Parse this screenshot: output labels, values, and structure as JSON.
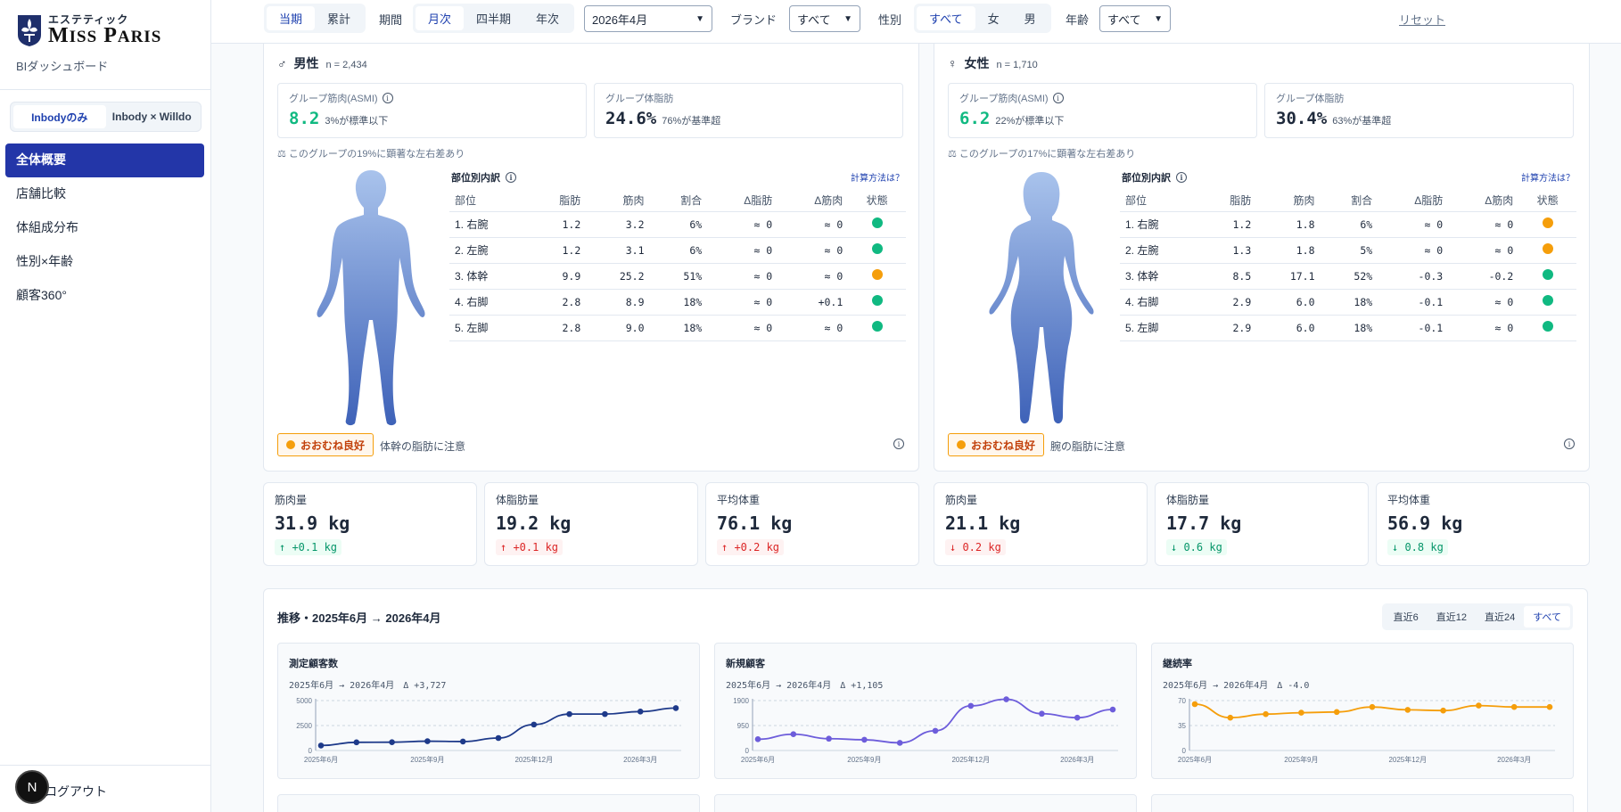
{
  "brand": {
    "sub": "エステティック",
    "main": "Miss Paris",
    "bi_label": "BIダッシュボード"
  },
  "source_toggle": [
    {
      "label": "Inbodyのみ",
      "active": true
    },
    {
      "label": "Inbody × Willdo",
      "active": false
    }
  ],
  "nav": [
    {
      "label": "全体概要",
      "active": true
    },
    {
      "label": "店舗比較",
      "active": false
    },
    {
      "label": "体組成分布",
      "active": false
    },
    {
      "label": "性別×年齢",
      "active": false
    },
    {
      "label": "顧客360°",
      "active": false
    }
  ],
  "logout": "ログアウト",
  "n_badge": "N",
  "filters": {
    "mode": [
      {
        "label": "当期",
        "active": true
      },
      {
        "label": "累計",
        "active": false
      }
    ],
    "period_label": "期間",
    "period": [
      {
        "label": "月次",
        "active": true
      },
      {
        "label": "四半期",
        "active": false
      },
      {
        "label": "年次",
        "active": false
      }
    ],
    "month_value": "2026年4月",
    "brand_label": "ブランド",
    "brand_value": "すべて",
    "gender_label": "性別",
    "gender": [
      {
        "label": "すべて",
        "active": true
      },
      {
        "label": "女",
        "active": false
      },
      {
        "label": "男",
        "active": false
      }
    ],
    "age_label": "年齢",
    "age_value": "すべて",
    "reset": "リセット"
  },
  "groups": [
    {
      "symbol": "♂",
      "title": "男性",
      "n": "n = 2,434",
      "asmi_label": "グループ筋肉(ASMI)",
      "asmi_value": "8.2",
      "asmi_note": "3%が標準以下",
      "fat_label": "グループ体脂肪",
      "fat_value": "24.6%",
      "fat_note": "76%が基準超",
      "lr_note": "⚖ このグループの19%に顕著な左右差あり",
      "breakdown_title": "部位別内訳",
      "calc_link": "計算方法は？",
      "columns": [
        "部位",
        "脂肪",
        "筋肉",
        "割合",
        "Δ脂肪",
        "Δ筋肉",
        "状態"
      ],
      "rows": [
        {
          "part": "1. 右腕",
          "fat": "1.2",
          "fat_c": "g",
          "muscle": "3.2",
          "ratio": "6%",
          "dfat": "≈ 0",
          "dfat_c": "gr",
          "dmus": "≈ 0",
          "dmus_c": "gr",
          "status": "#10b981"
        },
        {
          "part": "2. 左腕",
          "fat": "1.2",
          "fat_c": "g",
          "muscle": "3.1",
          "ratio": "6%",
          "dfat": "≈ 0",
          "dfat_c": "gr",
          "dmus": "≈ 0",
          "dmus_c": "gr",
          "status": "#10b981"
        },
        {
          "part": "3. 体幹",
          "fat": "9.9",
          "fat_c": "o",
          "muscle": "25.2",
          "ratio": "51%",
          "dfat": "≈ 0",
          "dfat_c": "gr",
          "dmus": "≈ 0",
          "dmus_c": "gr",
          "status": "#f59e0b"
        },
        {
          "part": "4. 右脚",
          "fat": "2.8",
          "fat_c": "g",
          "muscle": "8.9",
          "ratio": "18%",
          "dfat": "≈ 0",
          "dfat_c": "gr",
          "dmus": "+0.1",
          "dmus_c": "g",
          "status": "#10b981"
        },
        {
          "part": "5. 左脚",
          "fat": "2.8",
          "fat_c": "g",
          "muscle": "9.0",
          "ratio": "18%",
          "dfat": "≈ 0",
          "dfat_c": "gr",
          "dmus": "≈ 0",
          "dmus_c": "gr",
          "status": "#10b981"
        }
      ],
      "status_badge": "おおむね良好",
      "status_text": "体幹の脂肪に注意"
    },
    {
      "symbol": "♀",
      "title": "女性",
      "n": "n = 1,710",
      "asmi_label": "グループ筋肉(ASMI)",
      "asmi_value": "6.2",
      "asmi_note": "22%が標準以下",
      "fat_label": "グループ体脂肪",
      "fat_value": "30.4%",
      "fat_note": "63%が基準超",
      "lr_note": "⚖ このグループの17%に顕著な左右差あり",
      "breakdown_title": "部位別内訳",
      "calc_link": "計算方法は？",
      "columns": [
        "部位",
        "脂肪",
        "筋肉",
        "割合",
        "Δ脂肪",
        "Δ筋肉",
        "状態"
      ],
      "rows": [
        {
          "part": "1. 右腕",
          "fat": "1.2",
          "fat_c": "o",
          "muscle": "1.8",
          "ratio": "6%",
          "dfat": "≈ 0",
          "dfat_c": "gr",
          "dmus": "≈ 0",
          "dmus_c": "gr",
          "status": "#f59e0b"
        },
        {
          "part": "2. 左腕",
          "fat": "1.3",
          "fat_c": "o",
          "muscle": "1.8",
          "ratio": "5%",
          "dfat": "≈ 0",
          "dfat_c": "gr",
          "dmus": "≈ 0",
          "dmus_c": "gr",
          "status": "#f59e0b"
        },
        {
          "part": "3. 体幹",
          "fat": "8.5",
          "fat_c": "g",
          "muscle": "17.1",
          "ratio": "52%",
          "dfat": "-0.3",
          "dfat_c": "g",
          "dmus": "-0.2",
          "dmus_c": "r",
          "status": "#10b981"
        },
        {
          "part": "4. 右脚",
          "fat": "2.9",
          "fat_c": "g",
          "muscle": "6.0",
          "ratio": "18%",
          "dfat": "-0.1",
          "dfat_c": "g",
          "dmus": "≈ 0",
          "dmus_c": "gr",
          "status": "#10b981"
        },
        {
          "part": "5. 左脚",
          "fat": "2.9",
          "fat_c": "g",
          "muscle": "6.0",
          "ratio": "18%",
          "dfat": "-0.1",
          "dfat_c": "g",
          "dmus": "≈ 0",
          "dmus_c": "gr",
          "status": "#10b981"
        }
      ],
      "status_badge": "おおむね良好",
      "status_text": "腕の脂肪に注意"
    }
  ],
  "metrics": [
    {
      "label": "筋肉量",
      "value": "31.9 kg",
      "delta": "↑ +0.1 kg",
      "tone": "up-g"
    },
    {
      "label": "体脂肪量",
      "value": "19.2 kg",
      "delta": "↑ +0.1 kg",
      "tone": "up-r"
    },
    {
      "label": "平均体重",
      "value": "76.1 kg",
      "delta": "↑ +0.2 kg",
      "tone": "up-r"
    },
    {
      "label": "筋肉量",
      "value": "21.1 kg",
      "delta": "↓ 0.2 kg",
      "tone": "dn-r"
    },
    {
      "label": "体脂肪量",
      "value": "17.7 kg",
      "delta": "↓ 0.6 kg",
      "tone": "dn-g"
    },
    {
      "label": "平均体重",
      "value": "56.9 kg",
      "delta": "↓ 0.8 kg",
      "tone": "dn-g"
    }
  ],
  "trend": {
    "title": "推移・2025年6月 → 2026年4月",
    "ranges": [
      {
        "label": "直近6",
        "active": false
      },
      {
        "label": "直近12",
        "active": false
      },
      {
        "label": "直近24",
        "active": false
      },
      {
        "label": "すべて",
        "active": true
      }
    ]
  },
  "chart_data": [
    {
      "type": "line",
      "title": "測定顧客数",
      "subtitle": "2025年6月 → 2026年4月　Δ +3,727",
      "color": "#1e3a8a",
      "yticks": [
        0,
        2500,
        5000
      ],
      "ylim": [
        0,
        5000
      ],
      "x": [
        "2025年6月",
        "2025年7月",
        "2025年8月",
        "2025年9月",
        "2025年10月",
        "2025年11月",
        "2025年12月",
        "2026年1月",
        "2026年2月",
        "2026年3月",
        "2026年4月"
      ],
      "xticks": [
        "2025年6月",
        "2025年9月",
        "2025年12月",
        "2026年3月"
      ],
      "values": [
        500,
        820,
        830,
        930,
        900,
        1250,
        2600,
        3650,
        3650,
        3900,
        4250
      ]
    },
    {
      "type": "line",
      "title": "新規顧客",
      "subtitle": "2025年6月 → 2026年4月　Δ +1,105",
      "color": "#6d5ddb",
      "yticks": [
        0,
        950,
        1900
      ],
      "ylim": [
        0,
        1900
      ],
      "x": [
        "2025年6月",
        "2025年7月",
        "2025年8月",
        "2025年9月",
        "2025年10月",
        "2025年11月",
        "2025年12月",
        "2026年1月",
        "2026年2月",
        "2026年3月",
        "2026年4月"
      ],
      "xticks": [
        "2025年6月",
        "2025年9月",
        "2025年12月",
        "2026年3月"
      ],
      "values": [
        430,
        620,
        450,
        410,
        290,
        750,
        1700,
        1950,
        1400,
        1250,
        1560
      ]
    },
    {
      "type": "line",
      "title": "継続率",
      "subtitle": "2025年6月 → 2026年4月　Δ -4.0",
      "color": "#f59e0b",
      "yticks": [
        0,
        35,
        70
      ],
      "ylim": [
        0,
        70
      ],
      "x": [
        "2025年6月",
        "2025年7月",
        "2025年8月",
        "2025年9月",
        "2025年10月",
        "2025年11月",
        "2025年12月",
        "2026年1月",
        "2026年2月",
        "2026年3月",
        "2026年4月"
      ],
      "xticks": [
        "2025年6月",
        "2025年9月",
        "2025年12月",
        "2026年3月"
      ],
      "values": [
        65,
        46,
        51,
        53,
        54,
        61,
        57,
        56,
        63,
        61,
        61
      ]
    }
  ]
}
